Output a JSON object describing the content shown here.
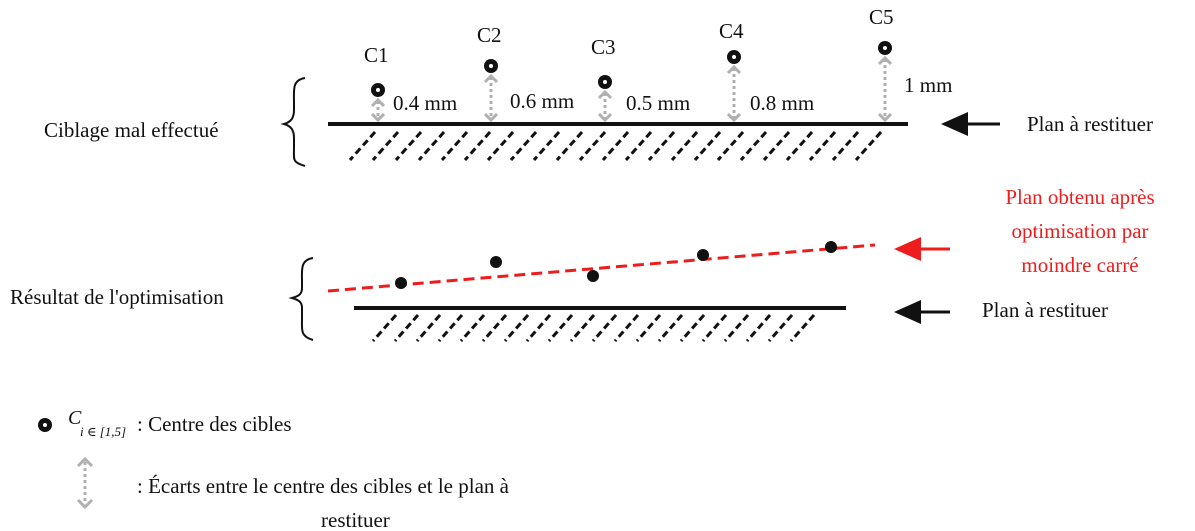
{
  "colors": {
    "ink": "#111111",
    "accent_red": "#ee1c1c",
    "gap_arrow": "#b0b0b0"
  },
  "top_section": {
    "label": "Ciblage mal effectué",
    "plane_label": "Plan à restituer",
    "targets": [
      {
        "name": "C1",
        "gap": "0.4 mm"
      },
      {
        "name": "C2",
        "gap": "0.6 mm"
      },
      {
        "name": "C3",
        "gap": "0.5 mm"
      },
      {
        "name": "C4",
        "gap": "0.8 mm"
      },
      {
        "name": "C5",
        "gap": "1 mm"
      }
    ]
  },
  "bottom_section": {
    "label": "Résultat de l'optimisation",
    "fitted_plane_label": [
      "Plan obtenu après",
      "optimisation par",
      "moindre carré"
    ],
    "plane_label": "Plan à restituer"
  },
  "legend": {
    "target_symbol": "C",
    "target_subscript": "i ∈ [1,5]",
    "target_desc": ": Centre des cibles",
    "gap_desc_line1": ": Écarts entre le centre des cibles et le plan à",
    "gap_desc_line2": "restituer"
  }
}
